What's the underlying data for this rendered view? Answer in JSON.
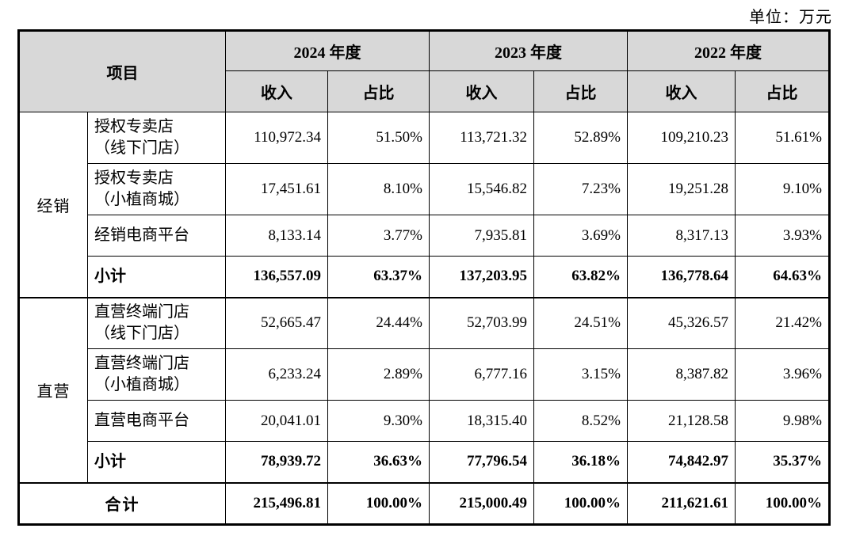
{
  "unit_label": "单位：万元",
  "colors": {
    "header_bg": "#d8d8d8",
    "border": "#000000",
    "text": "#000000",
    "page_bg": "#ffffff"
  },
  "table": {
    "header": {
      "item": "项目",
      "year_2024": "2024 年度",
      "year_2023": "2023 年度",
      "year_2022": "2022 年度",
      "income": "收入",
      "ratio": "占比"
    },
    "groups": [
      {
        "name": "经销",
        "rows": [
          {
            "label": "授权专卖店\n（线下门店）",
            "values": [
              "110,972.34",
              "51.50%",
              "113,721.32",
              "52.89%",
              "109,210.23",
              "51.61%"
            ]
          },
          {
            "label": "授权专卖店\n（小植商城）",
            "values": [
              "17,451.61",
              "8.10%",
              "15,546.82",
              "7.23%",
              "19,251.28",
              "9.10%"
            ]
          },
          {
            "label": "经销电商平台",
            "values": [
              "8,133.14",
              "3.77%",
              "7,935.81",
              "3.69%",
              "8,317.13",
              "3.93%"
            ]
          },
          {
            "label": "小计",
            "values": [
              "136,557.09",
              "63.37%",
              "137,203.95",
              "63.82%",
              "136,778.64",
              "64.63%"
            ]
          }
        ]
      },
      {
        "name": "直营",
        "rows": [
          {
            "label": "直营终端门店\n（线下门店）",
            "values": [
              "52,665.47",
              "24.44%",
              "52,703.99",
              "24.51%",
              "45,326.57",
              "21.42%"
            ]
          },
          {
            "label": "直营终端门店\n（小植商城）",
            "values": [
              "6,233.24",
              "2.89%",
              "6,777.16",
              "3.15%",
              "8,387.82",
              "3.96%"
            ]
          },
          {
            "label": "直营电商平台",
            "values": [
              "20,041.01",
              "9.30%",
              "18,315.40",
              "8.52%",
              "21,128.58",
              "9.98%"
            ]
          },
          {
            "label": "小计",
            "values": [
              "78,939.72",
              "36.63%",
              "77,796.54",
              "36.18%",
              "74,842.97",
              "35.37%"
            ]
          }
        ]
      }
    ],
    "total": {
      "label": "合计",
      "values": [
        "215,496.81",
        "100.00%",
        "215,000.49",
        "100.00%",
        "211,621.61",
        "100.00%"
      ]
    }
  }
}
